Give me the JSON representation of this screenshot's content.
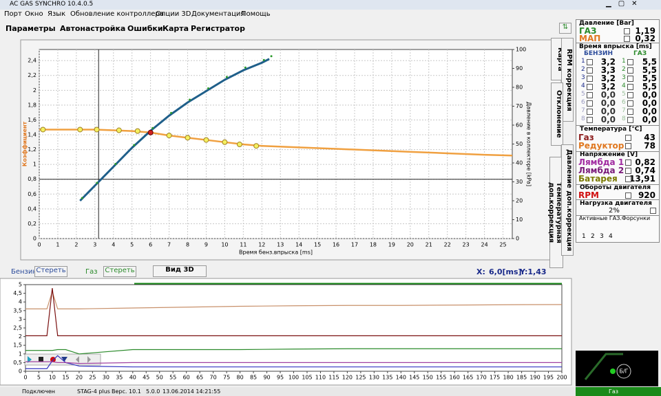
{
  "window": {
    "title": "AC GAS SYNCHRO 10.4.0.5"
  },
  "menu": [
    "Порт",
    "Окно",
    "Язык",
    "Обновление контроллера",
    "Опции 3D",
    "Документация",
    "Помощь"
  ],
  "tabs": [
    "Параметры",
    "Автонастройка",
    "Ошибки",
    "Карта",
    "Регистратор"
  ],
  "side_tabs": [
    "Карта",
    "RPM коррекция",
    "Отклонение",
    "Температурная доп.коррекция",
    "Давление доп.коррекция"
  ],
  "map_chart": {
    "type": "line",
    "y_label": "Коэффициент",
    "x_label": "Время бенз.впрыска [ms]",
    "y2_label": "Давление в коллекторе [kPa]",
    "xlim": [
      0,
      25.5
    ],
    "xticks": [
      0,
      1,
      2,
      3,
      4,
      5,
      6,
      7,
      8,
      9,
      10,
      11,
      12,
      13,
      14,
      15,
      16,
      17,
      18,
      19,
      20,
      21,
      22,
      23,
      24,
      25
    ],
    "ylim": [
      0,
      2.55
    ],
    "yticks": [
      0,
      {
        "value": 0.2,
        "label": "0,2"
      },
      {
        "value": 0.4,
        "label": "0,4"
      },
      {
        "value": 0.6,
        "label": "0,6"
      },
      {
        "value": 0.8,
        "label": "0,8"
      },
      1,
      {
        "value": 1.2,
        "label": "1,2"
      },
      {
        "value": 1.4,
        "label": "1,4"
      },
      {
        "value": 1.6,
        "label": "1,6"
      },
      {
        "value": 1.8,
        "label": "1,8"
      },
      2,
      {
        "value": 2.2,
        "label": "2,2"
      },
      {
        "value": 2.4,
        "label": "2,4"
      }
    ],
    "y2lim": [
      0,
      100
    ],
    "y2ticks": [
      0,
      10,
      20,
      30,
      40,
      50,
      60,
      70,
      80,
      90,
      100
    ],
    "grid": true,
    "coefficient": {
      "color": "#f0a040",
      "x": [
        0,
        3,
        4,
        5,
        6,
        7,
        8,
        9,
        10,
        11,
        12,
        14,
        16,
        18,
        20,
        22,
        24,
        25.5
      ],
      "values": [
        1.47,
        1.47,
        1.46,
        1.45,
        1.43,
        1.39,
        1.36,
        1.33,
        1.3,
        1.27,
        1.25,
        1.23,
        1.21,
        1.19,
        1.17,
        1.15,
        1.13,
        1.12
      ]
    },
    "points": {
      "color": "#f4f060",
      "x": [
        0.2,
        2.2,
        3.1,
        4.3,
        5.3,
        7,
        8,
        9,
        10,
        10.8,
        11.7
      ],
      "values": [
        1.47,
        1.47,
        1.47,
        1.46,
        1.45,
        1.39,
        1.36,
        1.33,
        1.3,
        1.27,
        1.25
      ]
    },
    "selected_point": {
      "color": "#d02020",
      "x": 6,
      "value": 1.43
    },
    "pressure": {
      "axis": "y2",
      "color": "#1f5f8a",
      "x": [
        2.2,
        3,
        4,
        5,
        6,
        7,
        8,
        9,
        10,
        11,
        12,
        12.4
      ],
      "values": [
        20,
        28,
        38,
        48,
        57,
        65,
        72,
        78,
        84,
        89,
        93,
        95
      ]
    },
    "cursor": {
      "x": 3.2,
      "value": 0.8
    }
  },
  "map_controls": {
    "petrol": "Бензин",
    "petrol_clear": "Стереть",
    "gas": "Газ",
    "gas_clear": "Стереть",
    "view3d": "Вид 3D",
    "x_label": "X:",
    "x_value": "6,0[ms]",
    "y_value": "Y:1,43"
  },
  "monitor_chart": {
    "type": "line",
    "xlim": [
      0,
      200
    ],
    "xticks": [
      0,
      5,
      10,
      15,
      20,
      25,
      30,
      35,
      40,
      45,
      50,
      55,
      60,
      65,
      70,
      75,
      80,
      85,
      90,
      95,
      100,
      105,
      110,
      115,
      120,
      125,
      130,
      135,
      140,
      145,
      150,
      155,
      160,
      165,
      170,
      175,
      180,
      185,
      190,
      195,
      200
    ],
    "ylim": [
      0,
      5
    ],
    "yticks": [
      0,
      {
        "value": 0.5,
        "label": "0,5"
      },
      1,
      {
        "value": 1.5,
        "label": "1,5"
      },
      2,
      {
        "value": 2.5,
        "label": "2,5"
      },
      3,
      {
        "value": 3.5,
        "label": "3,5"
      },
      4,
      {
        "value": 4.5,
        "label": "4,5"
      },
      5
    ],
    "x": [
      0,
      8,
      10,
      12,
      15,
      20,
      40,
      60,
      80,
      100,
      120,
      140,
      160,
      180,
      200
    ],
    "series": [
      {
        "color": "#c8906a",
        "values": [
          3.6,
          3.6,
          4.6,
          3.6,
          3.6,
          3.6,
          3.65,
          3.7,
          3.75,
          3.78,
          3.8,
          3.8,
          3.82,
          3.84,
          3.85
        ]
      },
      {
        "color": "#7a1010",
        "values": [
          2.05,
          2.05,
          4.8,
          2.05,
          2.05,
          2.05,
          2.05,
          2.05,
          2.05,
          2.05,
          2.05,
          2.05,
          2.05,
          2.05,
          2.05
        ]
      },
      {
        "color": "#2a8a2a",
        "values": [
          1.2,
          1.2,
          1.2,
          1.25,
          1.25,
          1.0,
          1.25,
          1.25,
          1.25,
          1.28,
          1.3,
          1.3,
          1.3,
          1.3,
          1.3
        ]
      },
      {
        "color": "#3030c0",
        "values": [
          0.15,
          0.15,
          0.6,
          0.9,
          0.5,
          0.3,
          0.25,
          0.25,
          0.25,
          0.25,
          0.25,
          0.25,
          0.25,
          0.25,
          0.25
        ]
      },
      {
        "color": "#a040a0",
        "values": [
          0.55,
          0.55,
          0.55,
          0.5,
          0.5,
          0.45,
          0.5,
          0.5,
          0.5,
          0.5,
          0.5,
          0.5,
          0.5,
          0.5,
          0.5
        ]
      }
    ]
  },
  "panel": {
    "pressure": {
      "title": "Давление [Bar]",
      "gas": "ГАЗ",
      "gas_value": "1,19",
      "map": "МАП",
      "map_value": "0,32"
    },
    "injection": {
      "title": "Время впрыска [ms]",
      "petrol": "БЕНЗИН",
      "gas": "ГАЗ",
      "rows": [
        {
          "n": "1",
          "petrol": "3,2",
          "gas": "5,5"
        },
        {
          "n": "2",
          "petrol": "3,3",
          "gas": "5,5"
        },
        {
          "n": "3",
          "petrol": "3,2",
          "gas": "5,5"
        },
        {
          "n": "4",
          "petrol": "3,2",
          "gas": "5,5"
        },
        {
          "n": "5",
          "petrol": "0,0",
          "gas": "0,0"
        },
        {
          "n": "6",
          "petrol": "0,0",
          "gas": "0,0"
        },
        {
          "n": "7",
          "petrol": "0,0",
          "gas": "0,0"
        },
        {
          "n": "8",
          "petrol": "0,0",
          "gas": "0,0"
        }
      ]
    },
    "temperature": {
      "title": "Температура [°C]",
      "gas": "Газ",
      "gas_value": "43",
      "reducer": "Редуктор",
      "reducer_value": "78"
    },
    "voltage": {
      "title": "Напряжение [V]",
      "lambda1": "Лямбда 1",
      "lambda1_value": "0,82",
      "lambda2": "Лямбда 2",
      "lambda2_value": "0,74",
      "battery": "Батарея",
      "battery_value": "13,91"
    },
    "rpm": {
      "title": "Обороты двигателя",
      "label": "RPM",
      "value": "920"
    },
    "load": {
      "title": "Нагрузка двигателя",
      "value": "2%"
    },
    "injectors": {
      "title": "Активные ГАЗ.Форсунки",
      "labels": [
        "1",
        "2",
        "3",
        "4"
      ]
    },
    "indicator": "Б/Г"
  },
  "status": {
    "state": "Подключен",
    "device": "STAG-4 plus",
    "version": "Верс. 10.1",
    "firmware": "5.0.0",
    "datetime": "13.06.2014 14:21:55",
    "fuel": "Газ"
  }
}
